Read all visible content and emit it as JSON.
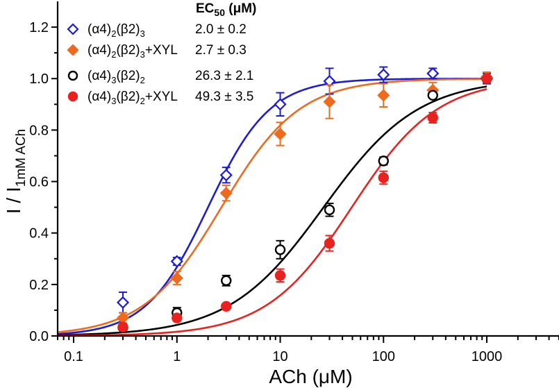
{
  "chart_data": {
    "type": "scatter",
    "xlabel": "ACh (μM)",
    "ylabel": {
      "main": "I / I",
      "sub": "1mM ACh"
    },
    "xscale": "log",
    "xlim": [
      0.07,
      5000
    ],
    "ylim": [
      0,
      1.3
    ],
    "xticks": [
      0.1,
      1,
      10,
      100,
      1000
    ],
    "xtick_labels": [
      "0.1",
      "1",
      "10",
      "100",
      "1000"
    ],
    "yticks": [
      0,
      0.2,
      0.4,
      0.6,
      0.8,
      1.0,
      1.2
    ],
    "ytick_labels": [
      "0.0",
      "0.2",
      "0.4",
      "0.6",
      "0.8",
      "1.0",
      "1.2"
    ],
    "legend_header": {
      "main": "EC",
      "sub": "50",
      "units": " (μM)"
    },
    "legend_placement": "top-left",
    "grid": false,
    "series": [
      {
        "name_parts": [
          [
            "(α4)",
            ""
          ],
          [
            "2",
            "sub"
          ],
          [
            "(β2)",
            ""
          ],
          [
            "3",
            "sub"
          ]
        ],
        "ec50_label": "2.0 ± 0.2",
        "ec50": 2.0,
        "hill": 1.45,
        "color": "#1c1cd6",
        "marker": "diamond-open",
        "x": [
          0.3,
          1,
          3,
          10,
          30,
          100,
          300,
          1000
        ],
        "y": [
          0.13,
          0.29,
          0.625,
          0.9,
          0.99,
          1.015,
          1.02,
          1.0
        ],
        "err": [
          0.04,
          0.015,
          0.03,
          0.045,
          0.05,
          0.03,
          0.02,
          0.02
        ]
      },
      {
        "name_parts": [
          [
            "(α4)",
            ""
          ],
          [
            "2",
            "sub"
          ],
          [
            "(β2)",
            ""
          ],
          [
            "3",
            "sub"
          ],
          [
            "+XYL",
            ""
          ]
        ],
        "ec50_label": "2.7 ± 0.3",
        "ec50": 2.7,
        "hill": 1.15,
        "color": "#f06a1e",
        "marker": "diamond-filled",
        "x": [
          0.3,
          1,
          3,
          10,
          30,
          100,
          300,
          1000
        ],
        "y": [
          0.07,
          0.225,
          0.555,
          0.785,
          0.91,
          0.935,
          0.955,
          1.005
        ],
        "err": [
          0.02,
          0.025,
          0.03,
          0.045,
          0.065,
          0.045,
          0.03,
          0.02
        ]
      },
      {
        "name_parts": [
          [
            "(α4)",
            ""
          ],
          [
            "3",
            "sub"
          ],
          [
            "(β2)",
            ""
          ],
          [
            "2",
            "sub"
          ]
        ],
        "ec50_label": "26.3 ± 2.1",
        "ec50": 26.3,
        "hill": 0.95,
        "color": "#000000",
        "marker": "circle-open",
        "x": [
          0.3,
          1,
          3,
          10,
          30,
          100,
          300,
          1000
        ],
        "y": [
          0.033,
          0.09,
          0.215,
          0.335,
          0.49,
          0.68,
          0.935,
          1.0
        ],
        "err": [
          0.01,
          0.02,
          0.02,
          0.035,
          0.025,
          0.015,
          0.01,
          0.01
        ]
      },
      {
        "name_parts": [
          [
            "(α4)",
            ""
          ],
          [
            "3",
            "sub"
          ],
          [
            "(β2)",
            ""
          ],
          [
            "2",
            "sub"
          ],
          [
            "+XYL",
            ""
          ]
        ],
        "ec50_label": "49.3 ± 3.5",
        "ec50": 49.3,
        "hill": 1.05,
        "color": "#e8231f",
        "marker": "circle-filled",
        "x": [
          0.3,
          1,
          3,
          10,
          30,
          100,
          300,
          1000
        ],
        "y": [
          0.035,
          0.07,
          0.115,
          0.235,
          0.36,
          0.615,
          0.848,
          1.0
        ],
        "err": [
          0.008,
          0.01,
          0.0,
          0.025,
          0.03,
          0.025,
          0.02,
          0.01
        ]
      }
    ]
  }
}
